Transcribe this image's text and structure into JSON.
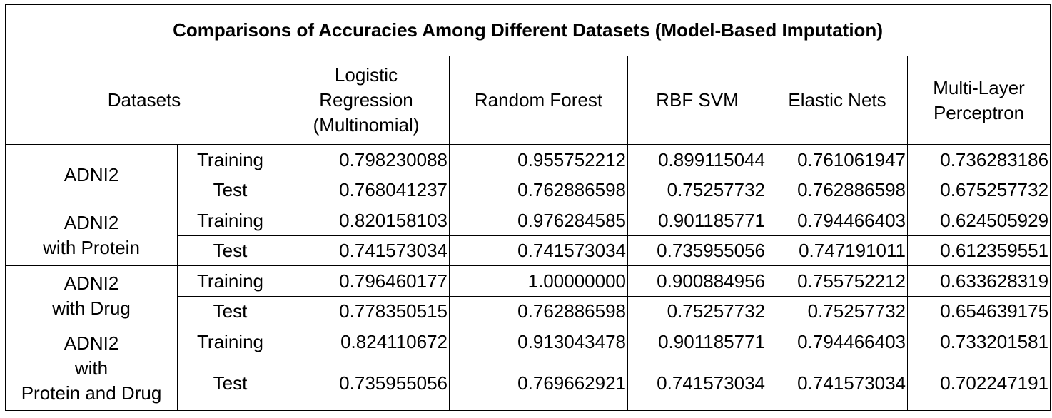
{
  "title": "Comparisons of Accuracies Among Different Datasets (Model-Based Imputation)",
  "headers": {
    "datasets": "Datasets",
    "models": [
      "Logistic\nRegression\n(Multinomial)",
      "Random Forest",
      "RBF SVM",
      "Elastic Nets",
      "Multi-Layer\nPerceptron"
    ]
  },
  "groups": [
    {
      "name": "ADNI2",
      "rows": [
        {
          "split": "Training",
          "values": [
            "0.798230088",
            "0.955752212",
            "0.899115044",
            "0.761061947",
            "0.736283186"
          ]
        },
        {
          "split": "Test",
          "values": [
            "0.768041237",
            "0.762886598",
            "0.75257732",
            "0.762886598",
            "0.675257732"
          ]
        }
      ]
    },
    {
      "name": "ADNI2\nwith Protein",
      "rows": [
        {
          "split": "Training",
          "values": [
            "0.820158103",
            "0.976284585",
            "0.901185771",
            "0.794466403",
            "0.624505929"
          ]
        },
        {
          "split": "Test",
          "values": [
            "0.741573034",
            "0.741573034",
            "0.735955056",
            "0.747191011",
            "0.612359551"
          ]
        }
      ]
    },
    {
      "name": "ADNI2\nwith Drug",
      "rows": [
        {
          "split": "Training",
          "values": [
            "0.796460177",
            "1.00000000",
            "0.900884956",
            "0.755752212",
            "0.633628319"
          ]
        },
        {
          "split": "Test",
          "values": [
            "0.778350515",
            "0.762886598",
            "0.75257732",
            "0.75257732",
            "0.654639175"
          ]
        }
      ]
    },
    {
      "name": "ADNI2\nwith\nProtein and Drug",
      "rows": [
        {
          "split": "Training",
          "values": [
            "0.824110672",
            "0.913043478",
            "0.901185771",
            "0.794466403",
            "0.733201581"
          ]
        },
        {
          "split": "Test",
          "values": [
            "0.735955056",
            "0.769662921",
            "0.741573034",
            "0.741573034",
            "0.702247191"
          ]
        }
      ]
    }
  ]
}
